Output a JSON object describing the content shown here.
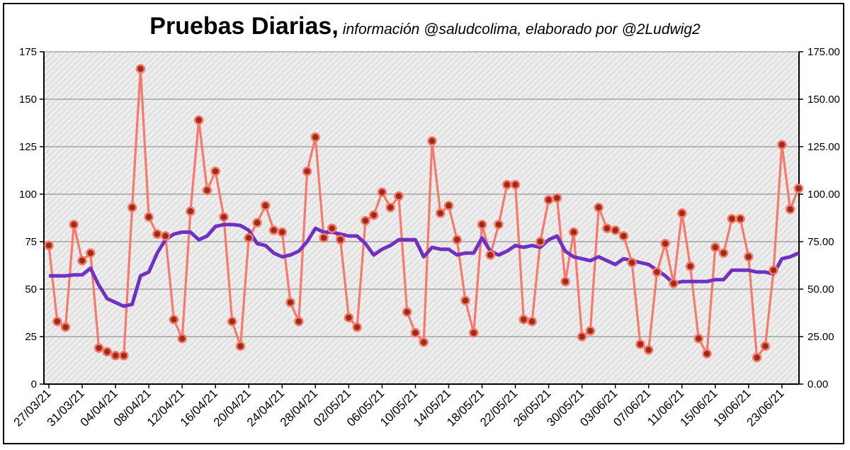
{
  "header": {
    "title": "Pruebas Diarias,",
    "subtitle": "información @saludcolima, elaborado por @2Ludwig2"
  },
  "chart_data": {
    "type": "line",
    "title": "Pruebas Diarias,",
    "subtitle": "información @saludcolima, elaborado por @2Ludwig2",
    "xlabel": "",
    "ylabel": "",
    "ylim": [
      0,
      175
    ],
    "y2lim": [
      0,
      175
    ],
    "yticks": [
      "0",
      "25",
      "50",
      "75",
      "100",
      "125",
      "150",
      "175"
    ],
    "y2ticks": [
      "0.00",
      "25.00",
      "50.00",
      "75.00",
      "100.00",
      "125.00",
      "150.00",
      "175.00"
    ],
    "x_tick_labels": [
      "27/03/21",
      "31/03/21",
      "04/04/21",
      "08/04/21",
      "12/04/21",
      "16/04/21",
      "20/04/21",
      "24/04/21",
      "28/04/21",
      "02/05/21",
      "06/05/21",
      "10/05/21",
      "14/05/21",
      "18/05/21",
      "22/05/21",
      "26/05/21",
      "30/05/21",
      "03/06/21",
      "07/06/21",
      "11/06/21",
      "15/06/21",
      "19/06/21",
      "23/06/21"
    ],
    "x_tick_step_days": 4,
    "grid": true,
    "legend": "none",
    "colors": {
      "daily": "#f8786b",
      "marker_fill": "#9b2d17",
      "moving_avg": "#7030c0",
      "plot_bg": "#e8e8e8",
      "grid": "#808080"
    },
    "series": [
      {
        "role": "daily",
        "values": [
          73,
          33,
          30,
          84,
          65,
          69,
          19,
          17,
          15,
          15,
          93,
          166,
          88,
          79,
          78,
          34,
          24,
          91,
          139,
          102,
          112,
          88,
          33,
          20,
          77,
          85,
          94,
          81,
          80,
          43,
          33,
          112,
          130,
          77,
          82,
          76,
          35,
          30,
          86,
          89,
          101,
          93,
          99,
          38,
          27,
          22,
          128,
          90,
          94,
          76,
          44,
          27,
          84,
          68,
          84,
          105,
          105,
          34,
          33,
          75,
          97,
          98,
          54,
          80,
          25,
          28,
          93,
          82,
          81,
          78,
          64,
          21,
          18,
          59,
          74,
          53,
          90,
          62,
          24,
          16,
          72,
          69,
          87,
          87,
          67,
          14,
          20,
          60,
          126,
          92,
          103
        ]
      },
      {
        "role": "moving_average",
        "values": [
          57,
          57,
          57,
          57.5,
          57.5,
          61,
          52,
          45,
          43,
          41,
          42,
          57,
          59,
          69,
          76,
          79,
          80,
          80,
          76,
          78,
          83,
          84,
          84,
          83.5,
          81,
          74,
          73,
          69,
          67,
          68,
          70,
          75,
          82,
          80,
          80,
          79,
          78,
          78,
          74,
          68,
          71,
          73,
          76,
          76,
          76,
          67,
          72,
          71,
          71,
          68,
          69,
          69,
          77,
          70,
          68,
          70,
          73,
          72,
          73,
          72,
          76,
          78,
          70,
          67,
          66,
          65,
          67,
          65,
          63,
          66,
          65,
          64,
          63,
          60,
          57,
          53,
          54,
          54,
          54,
          54,
          55,
          55,
          60,
          60,
          60,
          59,
          59,
          58,
          66,
          67,
          69
        ]
      }
    ]
  }
}
